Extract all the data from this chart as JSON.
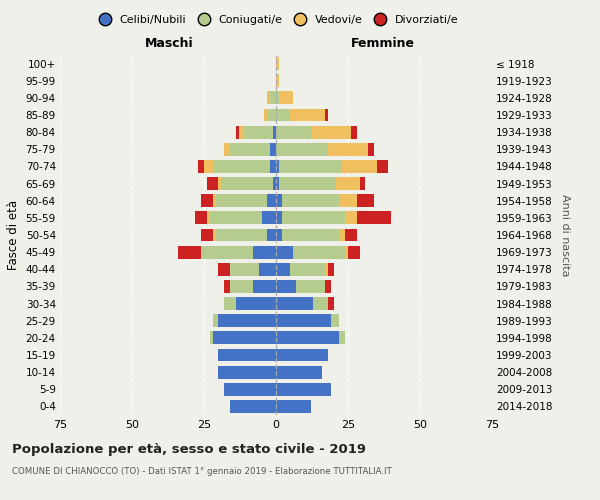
{
  "age_groups": [
    "0-4",
    "5-9",
    "10-14",
    "15-19",
    "20-24",
    "25-29",
    "30-34",
    "35-39",
    "40-44",
    "45-49",
    "50-54",
    "55-59",
    "60-64",
    "65-69",
    "70-74",
    "75-79",
    "80-84",
    "85-89",
    "90-94",
    "95-99",
    "100+"
  ],
  "birth_years": [
    "2014-2018",
    "2009-2013",
    "2004-2008",
    "1999-2003",
    "1994-1998",
    "1989-1993",
    "1984-1988",
    "1979-1983",
    "1974-1978",
    "1969-1973",
    "1964-1968",
    "1959-1963",
    "1954-1958",
    "1949-1953",
    "1944-1948",
    "1939-1943",
    "1934-1938",
    "1929-1933",
    "1924-1928",
    "1919-1923",
    "≤ 1918"
  ],
  "colors": {
    "celibi": "#4472c4",
    "coniugati": "#b5cc8e",
    "vedovi": "#f0c060",
    "divorziati": "#cc2222"
  },
  "males": {
    "celibi": [
      16,
      18,
      20,
      20,
      22,
      20,
      14,
      8,
      6,
      8,
      3,
      5,
      3,
      1,
      2,
      2,
      1,
      0,
      0,
      0,
      0
    ],
    "coniugati": [
      0,
      0,
      0,
      0,
      1,
      2,
      4,
      8,
      10,
      18,
      18,
      18,
      18,
      18,
      20,
      14,
      10,
      3,
      2,
      0,
      0
    ],
    "vedovi": [
      0,
      0,
      0,
      0,
      0,
      0,
      0,
      0,
      0,
      0,
      1,
      1,
      1,
      1,
      3,
      2,
      2,
      1,
      1,
      0,
      0
    ],
    "divorziati": [
      0,
      0,
      0,
      0,
      0,
      0,
      0,
      2,
      4,
      8,
      4,
      4,
      4,
      4,
      2,
      0,
      1,
      0,
      0,
      0,
      0
    ]
  },
  "females": {
    "celibi": [
      12,
      19,
      16,
      18,
      22,
      19,
      13,
      7,
      5,
      6,
      2,
      2,
      2,
      1,
      1,
      0,
      0,
      0,
      0,
      0,
      0
    ],
    "coniugati": [
      0,
      0,
      0,
      0,
      2,
      3,
      5,
      10,
      12,
      18,
      20,
      22,
      20,
      20,
      22,
      18,
      12,
      5,
      1,
      0,
      0
    ],
    "vedovi": [
      0,
      0,
      0,
      0,
      0,
      0,
      0,
      0,
      1,
      1,
      2,
      4,
      6,
      8,
      12,
      14,
      14,
      12,
      5,
      1,
      1
    ],
    "divorziati": [
      0,
      0,
      0,
      0,
      0,
      0,
      2,
      2,
      2,
      4,
      4,
      12,
      6,
      2,
      4,
      2,
      2,
      1,
      0,
      0,
      0
    ]
  },
  "xlim": 75,
  "title": "Popolazione per età, sesso e stato civile - 2019",
  "subtitle": "COMUNE DI CHIANOCCO (TO) - Dati ISTAT 1° gennaio 2019 - Elaborazione TUTTITALIA.IT",
  "ylabel": "Fasce di età",
  "ylabel_right": "Anni di nascita",
  "xlabel_left": "Maschi",
  "xlabel_right": "Femmine",
  "legend_labels": [
    "Celibi/Nubili",
    "Coniugati/e",
    "Vedovi/e",
    "Divorziati/e"
  ],
  "bg_color": "#f0f0eb"
}
